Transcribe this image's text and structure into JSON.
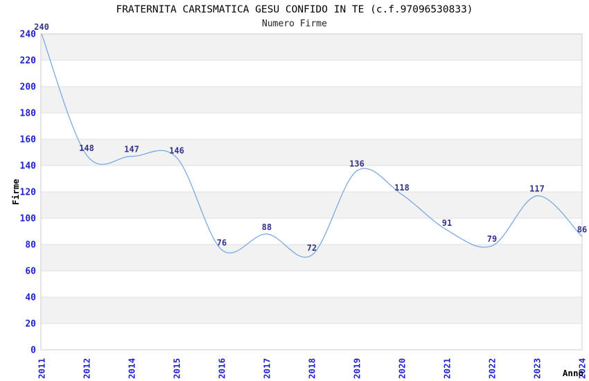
{
  "chart_data": {
    "type": "line",
    "title": "FRATERNITA CARISMATICA GESU CONFIDO IN TE (c.f.97096530833)",
    "subtitle": "Numero Firme",
    "xlabel": "Anno",
    "ylabel": "Firme",
    "categories": [
      "2011",
      "2012",
      "2014",
      "2015",
      "2016",
      "2017",
      "2018",
      "2019",
      "2020",
      "2021",
      "2022",
      "2023",
      "2024"
    ],
    "values": [
      240,
      148,
      147,
      146,
      76,
      88,
      72,
      136,
      118,
      91,
      79,
      117,
      86
    ],
    "y_ticks": [
      0,
      20,
      40,
      60,
      80,
      100,
      120,
      140,
      160,
      180,
      200,
      220,
      240
    ],
    "ylim": [
      0,
      240
    ],
    "ytick_step": 20,
    "legend": "none",
    "grid": "horizontal-bands",
    "style": {
      "line_color": "#7aa9e2",
      "tick_label_color": "#2222cc",
      "data_label_color": "#333388",
      "band_color": "#f2f2f2",
      "grid_color": "#e0e0e0",
      "border_color": "#d4d4d4",
      "title_color": "#000000",
      "axis_name_color": "#000000",
      "background": "#ffffff"
    }
  }
}
